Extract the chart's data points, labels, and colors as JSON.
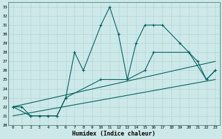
{
  "xlabel": "Humidex (Indice chaleur)",
  "bg_color": "#cde8e8",
  "grid_color": "#b8d8d8",
  "line_color": "#006060",
  "xlim": [
    -0.5,
    23.5
  ],
  "ylim": [
    20,
    33.5
  ],
  "yticks": [
    20,
    21,
    22,
    23,
    24,
    25,
    26,
    27,
    28,
    29,
    30,
    31,
    32,
    33
  ],
  "xticks": [
    0,
    1,
    2,
    3,
    4,
    5,
    6,
    7,
    8,
    9,
    10,
    11,
    12,
    13,
    14,
    15,
    16,
    17,
    18,
    19,
    20,
    21,
    22,
    23
  ],
  "line1_x": [
    0,
    1,
    2,
    3,
    4,
    5,
    6,
    7,
    8,
    10,
    11,
    12,
    13,
    14,
    15,
    16,
    17,
    19,
    20,
    21,
    22,
    23
  ],
  "line1_y": [
    22,
    22,
    21,
    21,
    21,
    21,
    23,
    28,
    26,
    31,
    33,
    30,
    25,
    29,
    31,
    31,
    31,
    29,
    28,
    27,
    25,
    26
  ],
  "line2_x": [
    0,
    2,
    3,
    4,
    5,
    6,
    10,
    13,
    15,
    16,
    20,
    22,
    23
  ],
  "line2_y": [
    22,
    21,
    21,
    21,
    21,
    23,
    25,
    25,
    26,
    28,
    28,
    25,
    26
  ],
  "line3_x": [
    0,
    23
  ],
  "line3_y": [
    22,
    27
  ],
  "line4_x": [
    0,
    23
  ],
  "line4_y": [
    21,
    25
  ]
}
